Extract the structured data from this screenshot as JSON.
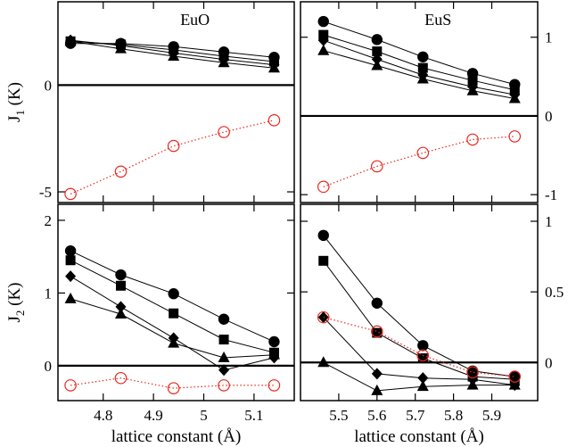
{
  "chart_data": [
    {
      "id": "EuO-J1",
      "type": "line",
      "title": "EuO",
      "ylabel": "J₁ (K)",
      "ylabel_main": "J",
      "ylabel_sub": "1",
      "ylabel_unit": " (K)",
      "xlabel": "",
      "xlim": [
        4.71,
        5.18
      ],
      "ylim": [
        -5.5,
        3.9
      ],
      "zero_line": true,
      "yticks": [
        -5,
        0
      ],
      "ytick_labels": [
        "-5",
        "0"
      ],
      "xticks": [
        4.8,
        4.9,
        5.0,
        5.1
      ],
      "xtick_labels": [],
      "x": [
        4.735,
        4.835,
        4.94,
        5.04,
        5.14
      ],
      "series": [
        {
          "marker": "circle",
          "values": [
            1.95,
            1.95,
            1.8,
            1.55,
            1.3
          ]
        },
        {
          "marker": "square",
          "values": [
            2.05,
            1.9,
            1.65,
            1.35,
            1.1
          ]
        },
        {
          "marker": "diamond",
          "values": [
            2.1,
            1.85,
            1.5,
            1.2,
            0.95
          ]
        },
        {
          "marker": "triangle",
          "values": [
            2.05,
            1.7,
            1.35,
            1.05,
            0.8
          ]
        },
        {
          "marker": "open-circle",
          "color": "#e8281e",
          "values": [
            -5.1,
            -4.05,
            -2.85,
            -2.2,
            -1.65
          ]
        }
      ]
    },
    {
      "id": "EuS-J1",
      "type": "line",
      "title": "EuS",
      "xlabel": "",
      "ylabel": "",
      "xlim": [
        5.4,
        6.02
      ],
      "ylim": [
        -1.1,
        1.45
      ],
      "zero_line": true,
      "yticks": [
        -1,
        0,
        1
      ],
      "ytick_labels": [
        "-1",
        "0",
        "1"
      ],
      "xticks": [
        5.5,
        5.6,
        5.7,
        5.8,
        5.9
      ],
      "xtick_labels": [],
      "x": [
        5.46,
        5.6,
        5.72,
        5.85,
        5.96
      ],
      "series": [
        {
          "marker": "circle",
          "values": [
            1.2,
            0.97,
            0.75,
            0.54,
            0.4
          ]
        },
        {
          "marker": "square",
          "values": [
            1.03,
            0.82,
            0.61,
            0.45,
            0.33
          ]
        },
        {
          "marker": "diamond",
          "values": [
            0.96,
            0.72,
            0.52,
            0.37,
            0.27
          ]
        },
        {
          "marker": "triangle",
          "values": [
            0.83,
            0.64,
            0.47,
            0.32,
            0.22
          ]
        },
        {
          "marker": "open-circle",
          "color": "#e8281e",
          "values": [
            -0.9,
            -0.64,
            -0.47,
            -0.3,
            -0.26
          ]
        }
      ]
    },
    {
      "id": "EuO-J2",
      "type": "line",
      "ylabel": "J₂ (K)",
      "ylabel_main": "J",
      "ylabel_sub": "2",
      "ylabel_unit": " (K)",
      "xlabel": "lattice constant (Å)",
      "xlim": [
        4.71,
        5.18
      ],
      "ylim": [
        -0.48,
        2.22
      ],
      "zero_line": true,
      "yticks": [
        0,
        1,
        2
      ],
      "ytick_labels": [
        "0",
        "1",
        "2"
      ],
      "xticks": [
        4.8,
        4.9,
        5.0,
        5.1
      ],
      "xtick_labels": [
        "4.8",
        "4.9",
        "5",
        "5.1"
      ],
      "x": [
        4.735,
        4.835,
        4.94,
        5.04,
        5.14
      ],
      "series": [
        {
          "marker": "circle",
          "values": [
            1.58,
            1.25,
            0.99,
            0.64,
            0.33
          ]
        },
        {
          "marker": "square",
          "values": [
            1.45,
            1.1,
            0.72,
            0.36,
            0.18
          ]
        },
        {
          "marker": "diamond",
          "values": [
            1.23,
            0.81,
            0.38,
            -0.06,
            0.11
          ]
        },
        {
          "marker": "triangle",
          "values": [
            0.92,
            0.71,
            0.31,
            0.11,
            0.15
          ]
        },
        {
          "marker": "open-circle",
          "color": "#e8281e",
          "values": [
            -0.27,
            -0.17,
            -0.31,
            -0.27,
            -0.27
          ]
        }
      ]
    },
    {
      "id": "EuS-J2",
      "type": "line",
      "ylabel": "",
      "xlabel": "lattice constant (Å)",
      "xlim": [
        5.4,
        6.02
      ],
      "ylim": [
        -0.27,
        1.12
      ],
      "zero_line": true,
      "yticks": [
        0,
        0.5,
        1
      ],
      "ytick_labels": [
        "0",
        "0.5",
        "1"
      ],
      "xticks": [
        5.5,
        5.6,
        5.7,
        5.8,
        5.9
      ],
      "xtick_labels": [
        "5.5",
        "5.6",
        "5.7",
        "5.8",
        "5.9"
      ],
      "x": [
        5.46,
        5.6,
        5.72,
        5.85,
        5.96
      ],
      "series": [
        {
          "marker": "circle",
          "values": [
            0.9,
            0.42,
            0.12,
            -0.06,
            -0.1
          ]
        },
        {
          "marker": "square",
          "values": [
            0.72,
            0.21,
            0.03,
            -0.1,
            -0.12
          ]
        },
        {
          "marker": "diamond",
          "values": [
            0.32,
            -0.08,
            -0.11,
            -0.12,
            -0.16
          ]
        },
        {
          "marker": "triangle",
          "values": [
            0.0,
            -0.2,
            -0.17,
            -0.16,
            -0.16
          ]
        },
        {
          "marker": "open-circle",
          "color": "#e8281e",
          "values": [
            0.32,
            0.22,
            0.05,
            -0.07,
            -0.1
          ]
        }
      ]
    }
  ]
}
